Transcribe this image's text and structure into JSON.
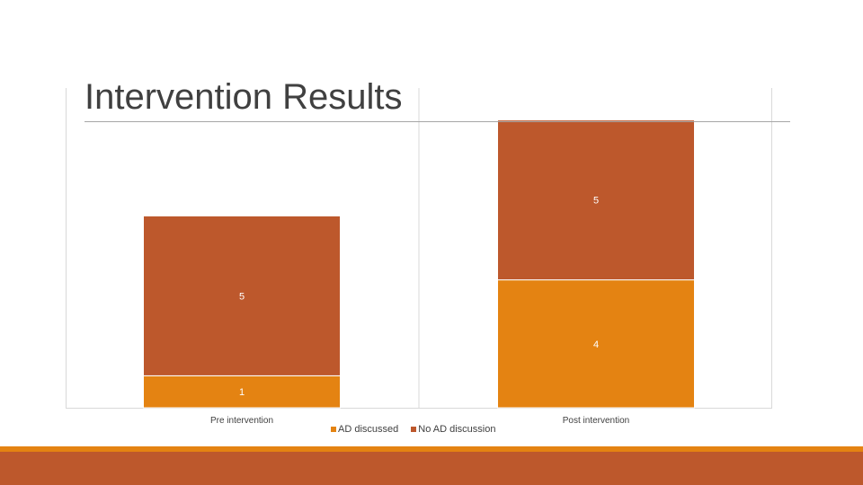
{
  "slide": {
    "title": "Intervention Results"
  },
  "colors": {
    "ad_discussed": "#e48312",
    "no_ad_discussion": "#bd582c",
    "accent_strip": "#e48312",
    "accent_band": "#bd582c"
  },
  "chart_data": {
    "type": "bar",
    "stacked": true,
    "title": "",
    "xlabel": "",
    "ylabel": "",
    "categories": [
      "Pre intervention",
      "Post intervention"
    ],
    "series": [
      {
        "name": "AD discussed",
        "values": [
          1,
          4
        ],
        "color": "#e48312"
      },
      {
        "name": "No AD discussion",
        "values": [
          5,
          5
        ],
        "color": "#bd582c"
      }
    ],
    "ylim": [
      0,
      10
    ],
    "grid": false,
    "legend_position": "bottom",
    "data_labels": true
  }
}
